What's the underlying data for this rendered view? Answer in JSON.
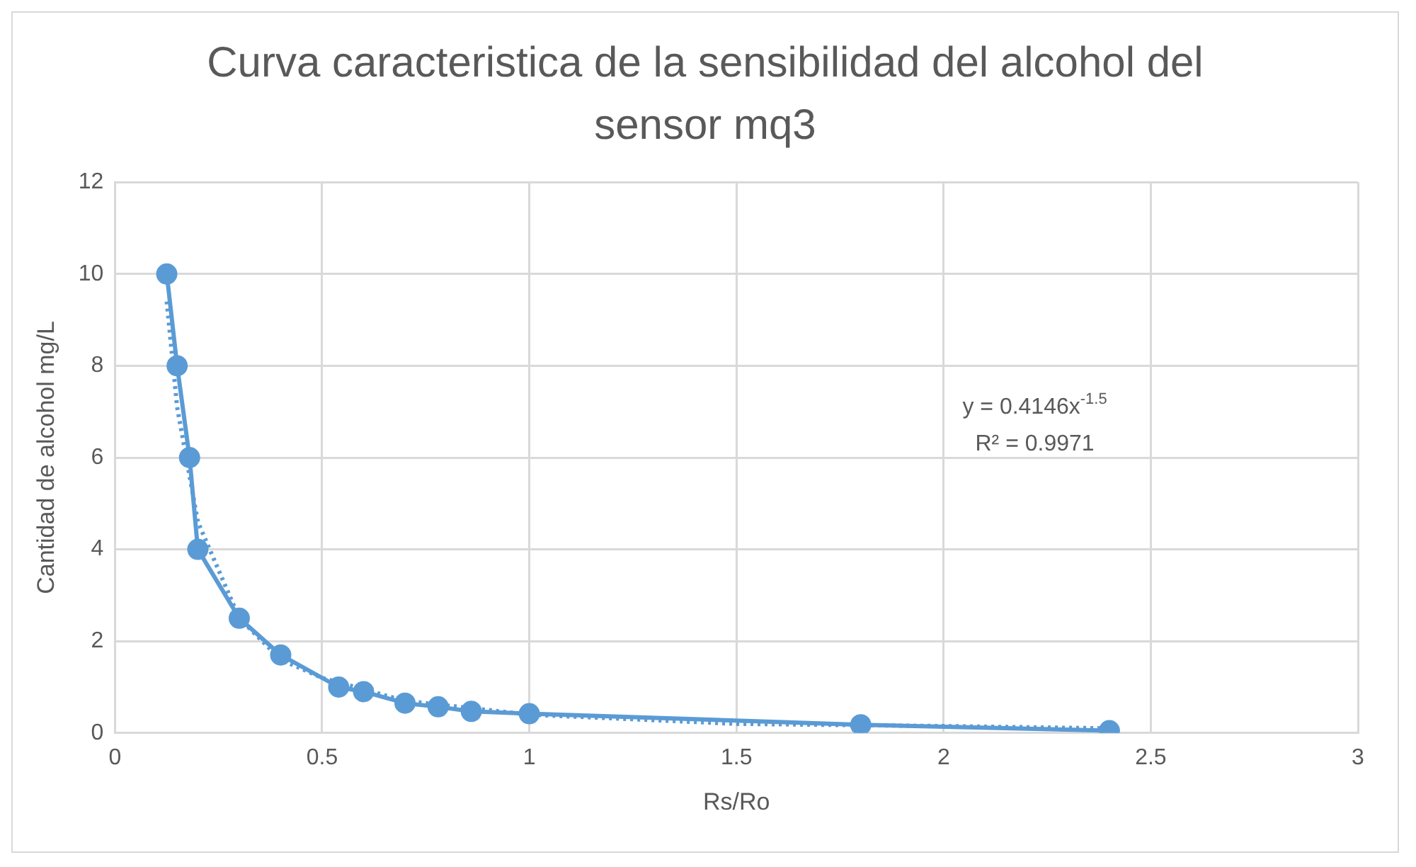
{
  "chart_data": {
    "type": "line",
    "title": "Curva caracteristica de la sensibilidad del alcohol del sensor mq3",
    "xlabel": "Rs/Ro",
    "ylabel": "Cantidad de alcohol mg/L",
    "series": [
      {
        "type": "line",
        "color": "#5b9bd5",
        "marker": "circle",
        "line_style": "solid",
        "x": [
          0.125,
          0.15,
          0.18,
          0.2,
          0.3,
          0.4,
          0.54,
          0.6,
          0.7,
          0.78,
          0.86,
          1.0,
          1.8,
          2.4
        ],
        "values": [
          10,
          8,
          6,
          4,
          2.5,
          1.7,
          1.0,
          0.9,
          0.65,
          0.57,
          0.47,
          0.42,
          0.18,
          0.05
        ]
      },
      {
        "type": "line",
        "color": "#5b9bd5",
        "marker": "none",
        "line_style": "dotted",
        "x": [
          0.125,
          0.15,
          0.2,
          0.3,
          0.4,
          0.5,
          0.7,
          1.0,
          1.5,
          2.0,
          2.4
        ],
        "values": [
          9.4,
          7.1,
          4.6,
          2.5,
          1.6,
          1.2,
          0.7,
          0.4,
          0.2,
          0.15,
          0.1
        ]
      }
    ],
    "xlim": [
      0,
      3
    ],
    "xticks": [
      0,
      0.5,
      1,
      1.5,
      2,
      2.5,
      3
    ],
    "ylim": [
      0,
      12
    ],
    "yticks": [
      0,
      2,
      4,
      6,
      8,
      10,
      12
    ],
    "grid": true,
    "legend": false,
    "annotations": [
      "y = 0.4146x$^{-1.5}$",
      "R² = 0.9971"
    ]
  }
}
